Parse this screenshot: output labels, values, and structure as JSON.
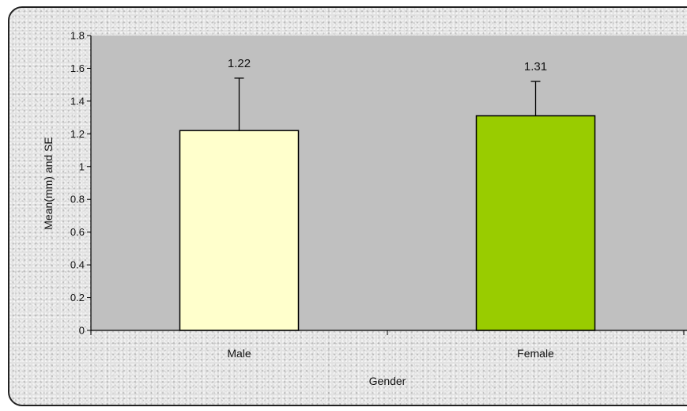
{
  "chart_data": {
    "type": "bar",
    "categories": [
      "Male",
      "Female"
    ],
    "values": [
      1.22,
      1.31
    ],
    "error_upper": [
      1.54,
      1.52
    ],
    "data_labels": [
      "1.22",
      "1.31"
    ],
    "bar_colors": [
      "#ffffcc",
      "#99cc00"
    ],
    "plot_background": "#c0c0c0",
    "frame_background": "#e2e2e2",
    "ylim": [
      0,
      1.8
    ],
    "yticks": [
      "0",
      "0.2",
      "0.4",
      "0.6",
      "0.8",
      "1",
      "1.2",
      "1.4",
      "1.6",
      "1.8"
    ],
    "ytick_values": [
      0,
      0.2,
      0.4,
      0.6,
      0.8,
      1.0,
      1.2,
      1.4,
      1.6,
      1.8
    ],
    "xlabel": "Gender",
    "ylabel": "Mean(mm) and SE",
    "title": "",
    "grid": false,
    "legend": "none"
  }
}
